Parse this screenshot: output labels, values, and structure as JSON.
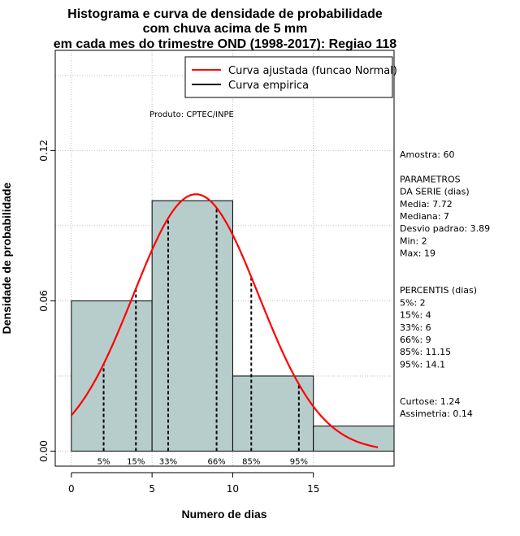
{
  "chart_data": {
    "type": "histogram",
    "title": [
      "Histograma e curva de densidade de probabilidade",
      "com chuva acima de 5 mm",
      "em cada mes do trimestre OND (1998-2017): Regiao 118"
    ],
    "xlabel": "Numero de dias",
    "ylabel": "Densidade de probabilidade",
    "xlim": [
      -1,
      20
    ],
    "ylim": [
      -0.006,
      0.16
    ],
    "xticks": [
      0,
      5,
      10,
      15
    ],
    "yticks": [
      0.0,
      0.06,
      0.12
    ],
    "ytick_labels": [
      "0.00",
      "0.06",
      "0.12"
    ],
    "bar_color": "#b7cdcc",
    "curve_color": "#ff0000",
    "bins": [
      {
        "start": 0,
        "end": 5,
        "density": 0.06
      },
      {
        "start": 5,
        "end": 10,
        "density": 0.1
      },
      {
        "start": 10,
        "end": 15,
        "density": 0.03
      },
      {
        "start": 15,
        "end": 20,
        "density": 0.01
      }
    ],
    "normal_fit": {
      "mean": 7.72,
      "sd": 3.89,
      "from": 0,
      "to": 19
    },
    "percentiles": [
      {
        "label": "5%",
        "x": 2
      },
      {
        "label": "15%",
        "x": 4
      },
      {
        "label": "33%",
        "x": 6
      },
      {
        "label": "66%",
        "x": 9
      },
      {
        "label": "85%",
        "x": 11.15
      },
      {
        "label": "95%",
        "x": 14.1
      }
    ],
    "legend": [
      {
        "label": "Curva ajustada (funcao Normal)",
        "color": "#ff0000"
      },
      {
        "label": "Curva empirica",
        "color": "#000000"
      }
    ],
    "legend_position": "top-right",
    "annotation": "Produto: CPTEC/INPE",
    "side_text": [
      "Amostra: 60",
      "",
      "PARAMETROS",
      "DA SERIE (dias)",
      "Media: 7.72",
      "Mediana: 7",
      "Desvio padrao: 3.89",
      "Min: 2",
      "Max: 19",
      "",
      "",
      "PERCENTIS (dias)",
      "5%: 2",
      "15%: 4",
      "33%: 6",
      "66%: 9",
      "85%: 11.15",
      "95%: 14.1",
      "",
      "",
      "Curtose: 1.24",
      "Assimetria: 0.14"
    ]
  }
}
